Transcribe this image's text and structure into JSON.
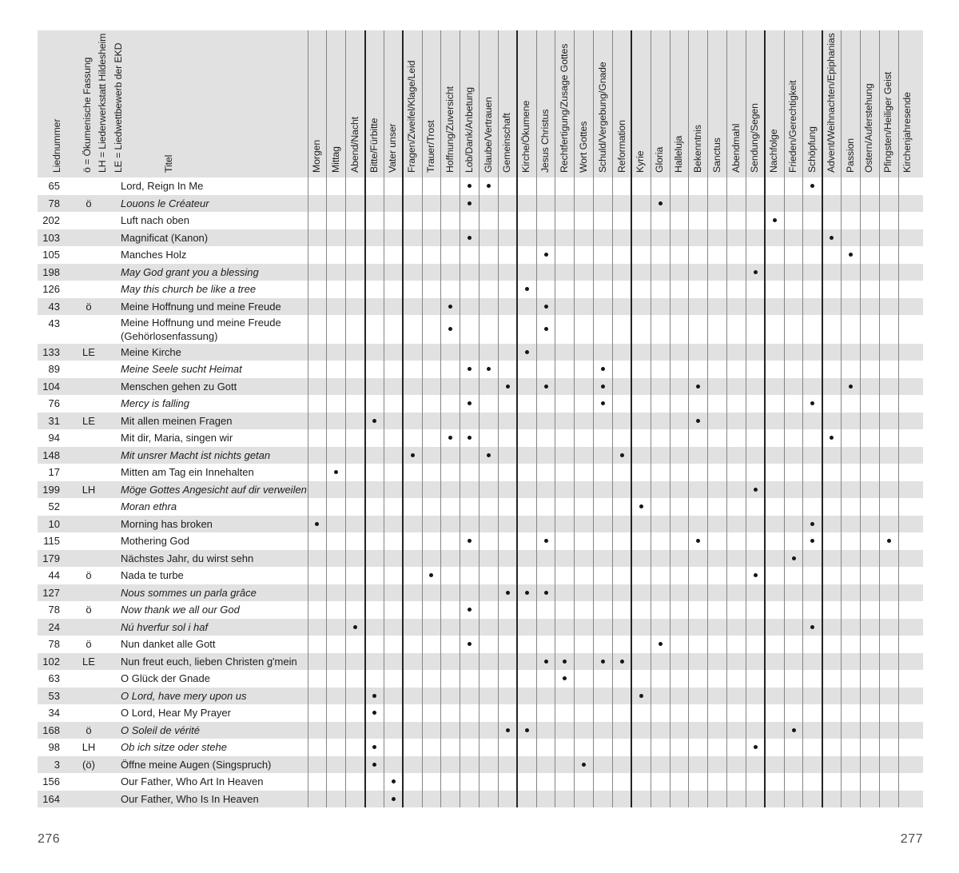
{
  "page": {
    "left_number": "276",
    "right_number": "277"
  },
  "header": {
    "col_liednummer": "Liednummer",
    "legend": [
      "ö = Ökumenische Fassung",
      "LH = Liederwerkstatt Hildesheim",
      "LE = Liedwettbewerb der EKD"
    ],
    "col_titel": "Titel",
    "categories": [
      "Morgen",
      "Mittag",
      "Abend/Nacht",
      "Bitte/Fürbitte",
      "Vater unser",
      "Fragen/Zweifel/Klage/Leid",
      "Trauer/Trost",
      "Hoffnung/Zuversicht",
      "Lob/Dank/Anbetung",
      "Glaube/Vertrauen",
      "Gemeinschaft",
      "Kirche/Ökumene",
      "Jesus Christus",
      "Rechtfertigung/Zusage Gottes",
      "Wort Gottes",
      "Schuld/Vergebung/Gnade",
      "Reformation",
      "Kyrie",
      "Gloria",
      "Halleluja",
      "Bekenntnis",
      "Sanctus",
      "Abendmahl",
      "Sendung/Segen",
      "Nachfolge",
      "Frieden/Gerechtigkeit",
      "Schöpfung",
      "Advent/Weihnachten/Epiphanias",
      "Passion",
      "Ostern/Auferstehung",
      "Pfingsten/Heiliger Geist",
      "Kirchenjahresende"
    ],
    "thick_boundaries": [
      0,
      3,
      5,
      11,
      17,
      24,
      27
    ]
  },
  "rows": [
    {
      "num": "65",
      "flag": "",
      "title": "Lord, Reign In Me",
      "italic": false,
      "dots": [
        9,
        10,
        27
      ]
    },
    {
      "num": "78",
      "flag": "ö",
      "title": "Louons le Créateur",
      "italic": true,
      "dots": [
        9,
        19
      ]
    },
    {
      "num": "202",
      "flag": "",
      "title": "Luft nach oben",
      "italic": false,
      "dots": [
        25
      ]
    },
    {
      "num": "103",
      "flag": "",
      "title": "Magnificat (Kanon)",
      "italic": false,
      "dots": [
        9,
        28
      ]
    },
    {
      "num": "105",
      "flag": "",
      "title": "Manches Holz",
      "italic": false,
      "dots": [
        13,
        29
      ]
    },
    {
      "num": "198",
      "flag": "",
      "title": "May God grant you a blessing",
      "italic": true,
      "dots": [
        24
      ]
    },
    {
      "num": "126",
      "flag": "",
      "title": "May this church be like a tree",
      "italic": true,
      "dots": [
        12
      ]
    },
    {
      "num": "43",
      "flag": "ö",
      "title": "Meine Hoffnung und meine Freude",
      "italic": false,
      "dots": [
        8,
        13
      ]
    },
    {
      "num": "43",
      "flag": "",
      "title": "Meine Hoffnung und meine Freude",
      "title2": "(Gehörlosenfassung)",
      "italic": false,
      "dots": [
        8,
        13
      ]
    },
    {
      "num": "133",
      "flag": "LE",
      "title": "Meine Kirche",
      "italic": false,
      "dots": [
        12
      ]
    },
    {
      "num": "89",
      "flag": "",
      "title": "Meine Seele sucht Heimat",
      "italic": true,
      "dots": [
        9,
        10,
        16
      ]
    },
    {
      "num": "104",
      "flag": "",
      "title": "Menschen gehen zu Gott",
      "italic": false,
      "dots": [
        11,
        13,
        16,
        21,
        29
      ]
    },
    {
      "num": "76",
      "flag": "",
      "title": "Mercy is falling",
      "italic": true,
      "dots": [
        9,
        16,
        27
      ]
    },
    {
      "num": "31",
      "flag": "LE",
      "title": "Mit allen meinen Fragen",
      "italic": false,
      "dots": [
        4,
        21
      ]
    },
    {
      "num": "94",
      "flag": "",
      "title": "Mit dir, Maria, singen wir",
      "italic": false,
      "dots": [
        8,
        9,
        28
      ]
    },
    {
      "num": "148",
      "flag": "",
      "title": "Mit unsrer Macht ist nichts getan",
      "italic": true,
      "dots": [
        6,
        10,
        17
      ]
    },
    {
      "num": "17",
      "flag": "",
      "title": "Mitten am Tag ein Innehalten",
      "italic": false,
      "dots": [
        2
      ]
    },
    {
      "num": "199",
      "flag": "LH",
      "title": "Möge Gottes Angesicht auf dir verweilen",
      "italic": true,
      "dots": [
        24
      ]
    },
    {
      "num": "52",
      "flag": "",
      "title": "Moran ethra",
      "italic": true,
      "dots": [
        18
      ]
    },
    {
      "num": "10",
      "flag": "",
      "title": "Morning has broken",
      "italic": false,
      "dots": [
        1,
        27
      ]
    },
    {
      "num": "115",
      "flag": "",
      "title": "Mothering God",
      "italic": false,
      "dots": [
        9,
        13,
        21,
        27,
        31
      ]
    },
    {
      "num": "179",
      "flag": "",
      "title": "Nächstes Jahr, du wirst sehn",
      "italic": false,
      "dots": [
        26
      ]
    },
    {
      "num": "44",
      "flag": "ö",
      "title": "Nada te turbe",
      "italic": false,
      "dots": [
        7,
        24
      ]
    },
    {
      "num": "127",
      "flag": "",
      "title": "Nous sommes un parla grâce",
      "italic": true,
      "dots": [
        11,
        12,
        13
      ]
    },
    {
      "num": "78",
      "flag": "ö",
      "title": "Now thank we all our God",
      "italic": true,
      "dots": [
        9
      ]
    },
    {
      "num": "24",
      "flag": "",
      "title": "Nú hverfur sol i haf",
      "italic": true,
      "dots": [
        3,
        27
      ]
    },
    {
      "num": "78",
      "flag": "ö",
      "title": "Nun danket alle Gott",
      "italic": false,
      "dots": [
        9,
        19
      ]
    },
    {
      "num": "102",
      "flag": "LE",
      "title": "Nun freut euch, lieben Christen g'mein",
      "italic": false,
      "dots": [
        13,
        14,
        16,
        17
      ]
    },
    {
      "num": "63",
      "flag": "",
      "title": "O Glück der Gnade",
      "italic": false,
      "dots": [
        14
      ]
    },
    {
      "num": "53",
      "flag": "",
      "title": "O Lord, have mery upon us",
      "italic": true,
      "dots": [
        4,
        18
      ]
    },
    {
      "num": "34",
      "flag": "",
      "title": "O Lord, Hear My Prayer",
      "italic": false,
      "dots": [
        4
      ]
    },
    {
      "num": "168",
      "flag": "ö",
      "title": "O Soleil de vérité",
      "italic": true,
      "dots": [
        11,
        12,
        26
      ]
    },
    {
      "num": "98",
      "flag": "LH",
      "title": "Ob ich sitze oder stehe",
      "italic": true,
      "dots": [
        4,
        24
      ]
    },
    {
      "num": "3",
      "flag": "(ö)",
      "title": "Öffne meine Augen (Singspruch)",
      "italic": false,
      "dots": [
        4,
        15
      ]
    },
    {
      "num": "156",
      "flag": "",
      "title": "Our Father, Who Art In Heaven",
      "italic": false,
      "dots": [
        5
      ]
    },
    {
      "num": "164",
      "flag": "",
      "title": "Our Father, Who Is In Heaven",
      "italic": false,
      "dots": [
        5
      ]
    }
  ]
}
